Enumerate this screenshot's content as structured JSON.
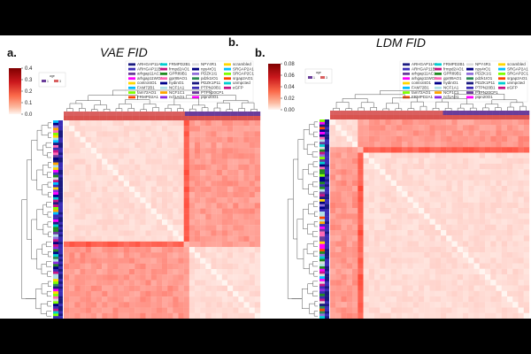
{
  "figure": {
    "panel_a_label": "a.",
    "panel_b_label": "b.",
    "panel_b_label_dup": "b."
  },
  "chart_data": [
    {
      "type": "heatmap",
      "title": "VAE FID",
      "colorbar": {
        "ticks": [
          "0.4",
          "0.3",
          "0.2",
          "0.1",
          "0.0"
        ],
        "range": [
          0,
          0.4
        ],
        "colormap": "Reds"
      },
      "age_legend": {
        "title": "age",
        "entries": [
          {
            "label": "1",
            "color": "#6a3d9a"
          },
          {
            "label": "3",
            "color": "#d95f5f"
          }
        ]
      },
      "gene_legend": [
        "ARHGAP11A1",
        "ARHGAP11B1",
        "arhgap11AC1",
        "arhgap11WO1",
        "control4O1",
        "FAM72B1",
        "fam72AO1",
        "FRMPD2A1",
        "FRMPD2B1",
        "frmpd2AO1",
        "GPR89B1",
        "gpr89AO1",
        "hydinO1",
        "NCF1A1",
        "NCF1C1",
        "ncf1AO1",
        "NPY4R1",
        "npy4rO1",
        "PDZK1I1",
        "pdzk1IO1",
        "PDZK1P11",
        "PTPN20B1",
        "PTPN20CP1",
        "ptpn20O1",
        "scrambled",
        "SRGAP2A1",
        "SRGAP2C1",
        "srgap2AO1",
        "unmpcted",
        "eGFP"
      ],
      "colors": {
        "max": "#7f0000",
        "mid": "#e34a33",
        "min": "#fff5f0"
      }
    },
    {
      "type": "heatmap",
      "title": "LDM FID",
      "colorbar": {
        "ticks": [
          "0.08",
          "0.06",
          "0.04",
          "0.02",
          "0.00"
        ],
        "range": [
          0,
          0.08
        ],
        "colormap": "Reds"
      },
      "age_legend": {
        "title": "age",
        "entries": [
          {
            "label": "1",
            "color": "#6a3d9a"
          },
          {
            "label": "3",
            "color": "#d95f5f"
          }
        ]
      },
      "gene_legend": [
        "ARHGAP11A1",
        "ARHGAP11B1",
        "arhgap11AC1",
        "arhgap11WO1",
        "control4O1",
        "FAM72B1",
        "fam72AO1",
        "FRMPD2A1",
        "FRMPD2B1",
        "frmpd2AO1",
        "GPR89B1",
        "gpr89AO1",
        "hydinO1",
        "NCF1A1",
        "NCF1C1",
        "ncf1AO1",
        "NPY4R1",
        "npy4rO1",
        "PDZK1I1",
        "pdzk1IO1",
        "PDZK1P11",
        "PTPN20B1",
        "PTPN20CP1",
        "ptpn20O1",
        "scrambled",
        "SRGAP2A1",
        "SRGAP2C1",
        "srgap2AO1",
        "unmpcted",
        "eGFP"
      ],
      "colors": {
        "max": "#7f0000",
        "mid": "#e34a33",
        "min": "#fff5f0"
      }
    }
  ]
}
